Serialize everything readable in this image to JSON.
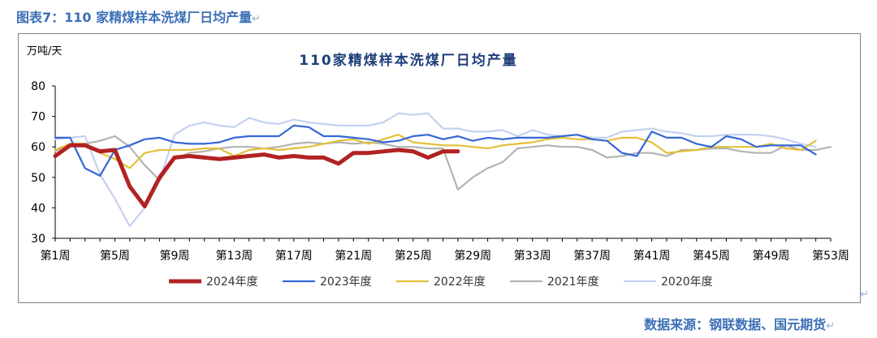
{
  "caption": "图表7：110 家精煤样本洗煤厂日均产量",
  "source": "数据来源：钢联数据、国元期货",
  "return_mark": "↵",
  "colors": {
    "caption": "#3b6fb6"
  },
  "chart_data": {
    "type": "line",
    "title": "110家精煤样本洗煤厂日均产量",
    "ylabel": "万吨/天",
    "xlabel": "",
    "ylim": [
      30,
      80
    ],
    "yticks": [
      30,
      40,
      50,
      60,
      70,
      80
    ],
    "xlim": [
      1,
      53
    ],
    "xticks": [
      1,
      5,
      9,
      13,
      17,
      21,
      25,
      29,
      33,
      37,
      41,
      45,
      49,
      53
    ],
    "xtick_labels": [
      "第1周",
      "第5周",
      "第9周",
      "第13周",
      "第17周",
      "第21周",
      "第25周",
      "第29周",
      "第33周",
      "第37周",
      "第41周",
      "第45周",
      "第49周",
      "第53周"
    ],
    "grid": false,
    "legend_position": "bottom",
    "series": [
      {
        "name": "2024年度",
        "color": "#b22222",
        "width": 5,
        "values": [
          57,
          60.5,
          60.5,
          58.5,
          59,
          47,
          40.5,
          50,
          56.5,
          57,
          56.5,
          56,
          56.5,
          57,
          57.5,
          56.5,
          57,
          56.5,
          56.5,
          54.5,
          58,
          58,
          58.5,
          59,
          58.5,
          56.5,
          58.5,
          58.5
        ]
      },
      {
        "name": "2023年度",
        "color": "#3567d6",
        "width": 2.2,
        "values": [
          63,
          63,
          53,
          50.5,
          59,
          60.5,
          62.5,
          63,
          61.5,
          61,
          61,
          61.5,
          63,
          63.5,
          63.5,
          63.5,
          67,
          66.5,
          63.5,
          63.5,
          63,
          62.5,
          61.5,
          62,
          63.5,
          64,
          62.5,
          63.5,
          62,
          63,
          62.5,
          63,
          63,
          63,
          63.5,
          64,
          62.5,
          62,
          58,
          57,
          65,
          63,
          63,
          61,
          60,
          63.5,
          62.5,
          60,
          60.5,
          60.5,
          60.5,
          57.5
        ]
      },
      {
        "name": "2022年度",
        "color": "#e3c03a",
        "width": 2.2,
        "values": [
          59,
          61,
          61,
          58,
          56,
          53,
          58,
          59,
          59,
          59,
          59.5,
          59.5,
          57,
          59,
          59.5,
          59,
          59.5,
          60,
          61,
          62,
          62.5,
          61,
          62.5,
          64,
          61.5,
          61,
          60.5,
          60.5,
          60,
          59.5,
          60.5,
          61,
          61.5,
          62.5,
          63,
          62.5,
          62.5,
          62,
          63,
          63,
          61.5,
          58,
          58.5,
          59,
          60,
          60,
          60,
          60,
          61,
          59.5,
          59,
          62
        ]
      },
      {
        "name": "2021年度",
        "color": "#b3b3b3",
        "width": 2.2,
        "values": [
          58.5,
          61,
          61,
          62,
          63.5,
          60,
          54,
          49,
          56,
          58,
          58.5,
          59.5,
          60,
          60,
          59.5,
          60,
          61,
          61.5,
          61,
          61.5,
          61,
          61.5,
          61,
          60,
          60,
          59.5,
          59.5,
          46,
          50,
          53,
          55,
          59.5,
          60,
          60.5,
          60,
          60,
          59,
          56.5,
          57,
          58,
          58,
          57,
          59,
          59,
          59.5,
          59.5,
          58.5,
          58,
          58,
          60.5,
          59,
          59,
          60
        ]
      },
      {
        "name": "2020年度",
        "color": "#c4d1ef",
        "width": 2.2,
        "values": [
          62.5,
          63,
          63.5,
          51,
          43,
          34,
          40,
          49,
          64,
          67,
          68,
          67,
          66.5,
          69.5,
          68,
          67.5,
          69,
          68,
          67.5,
          67,
          67,
          67,
          68,
          71,
          70.5,
          71,
          66,
          66,
          65,
          65,
          65.5,
          63.5,
          65.5,
          64,
          63.5,
          64,
          63,
          63,
          65,
          65.5,
          66,
          65,
          64.5,
          63.5,
          63.5,
          64,
          64,
          64,
          63.5,
          62.5,
          61,
          60
        ]
      }
    ]
  }
}
